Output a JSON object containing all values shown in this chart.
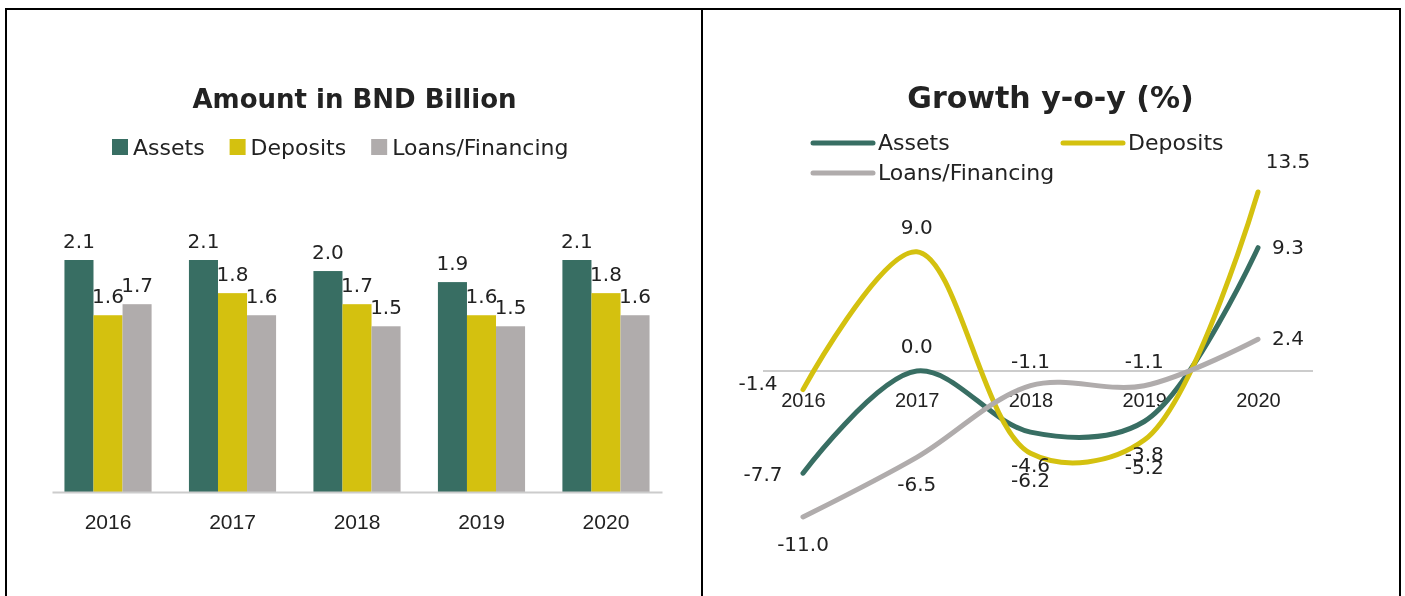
{
  "chart_data": [
    {
      "type": "bar",
      "title": "Amount in BND Billion",
      "categories": [
        "2016",
        "2017",
        "2018",
        "2019",
        "2020"
      ],
      "legend": "top",
      "tick_labels": "x",
      "series": [
        {
          "name": "Assets",
          "color": "#386e63",
          "values": [
            2.1,
            2.1,
            2.0,
            1.9,
            2.1
          ],
          "value_labels": [
            "2.1",
            "2.1",
            "2.0",
            "1.9",
            "2.1"
          ]
        },
        {
          "name": "Deposits",
          "color": "#d4c10f",
          "values": [
            1.6,
            1.8,
            1.7,
            1.6,
            1.8
          ],
          "value_labels": [
            "1.6",
            "1.8",
            "1.7",
            "1.6",
            "1.8"
          ]
        },
        {
          "name": "Loans/Financing",
          "color": "#b0acac",
          "values": [
            1.7,
            1.6,
            1.5,
            1.5,
            1.6
          ],
          "value_labels": [
            "1.7",
            "1.6",
            "1.5",
            "1.5",
            "1.6"
          ]
        }
      ]
    },
    {
      "type": "line",
      "title": "Growth y-o-y (%)",
      "categories": [
        "2016",
        "2017",
        "2018",
        "2019",
        "2020"
      ],
      "legend": "top left",
      "marker": "none",
      "line_style": "solid",
      "series": [
        {
          "name": "Assets",
          "color": "#386e63",
          "values": [
            -7.7,
            0.0,
            -4.6,
            -3.8,
            9.3
          ],
          "value_labels": [
            "-7.7",
            "0.0",
            "-4.6",
            "-3.8",
            "9.3"
          ]
        },
        {
          "name": "Deposits",
          "color": "#d4c10f",
          "values": [
            -1.4,
            9.0,
            -6.2,
            -5.2,
            13.5
          ],
          "value_labels": [
            "-1.4",
            "9.0",
            "-6.2",
            "-5.2",
            "13.5"
          ]
        },
        {
          "name": "Loans/Financing",
          "color": "#b0acac",
          "values": [
            -11.0,
            -6.5,
            -1.1,
            -1.1,
            2.4
          ],
          "value_labels": [
            "-11.0",
            "-6.5",
            "-1.1",
            "-1.1",
            "2.4"
          ]
        }
      ]
    }
  ]
}
